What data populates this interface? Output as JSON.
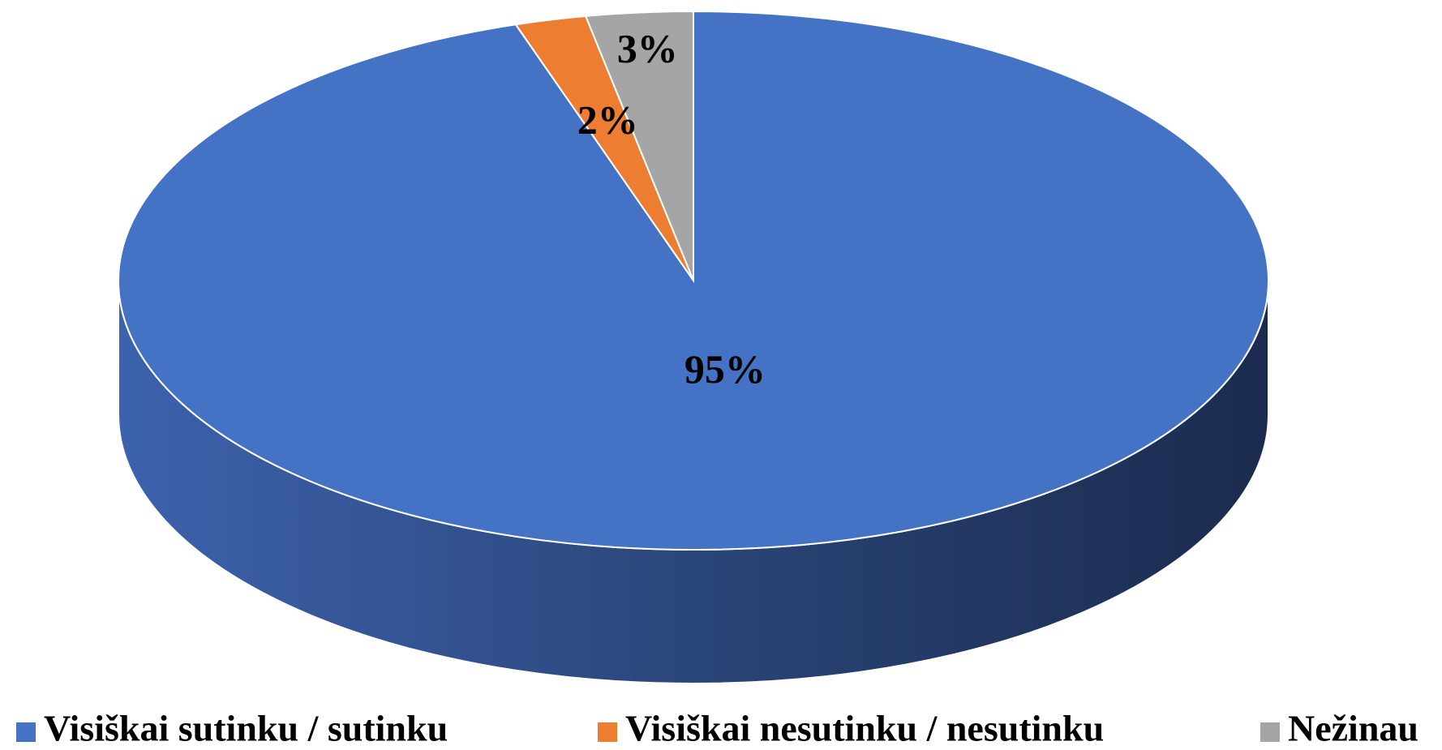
{
  "chart_data": {
    "type": "pie",
    "categories": [
      "Visiškai sutinku / sutinku",
      "Visiškai nesutinku / nesutinku",
      "Nežinau"
    ],
    "values": [
      95,
      2,
      3
    ],
    "value_labels": [
      "95%",
      "2%",
      "3%"
    ],
    "colors": [
      "#4472c4",
      "#ed7d31",
      "#a5a5a5"
    ],
    "legend": "bottom"
  }
}
